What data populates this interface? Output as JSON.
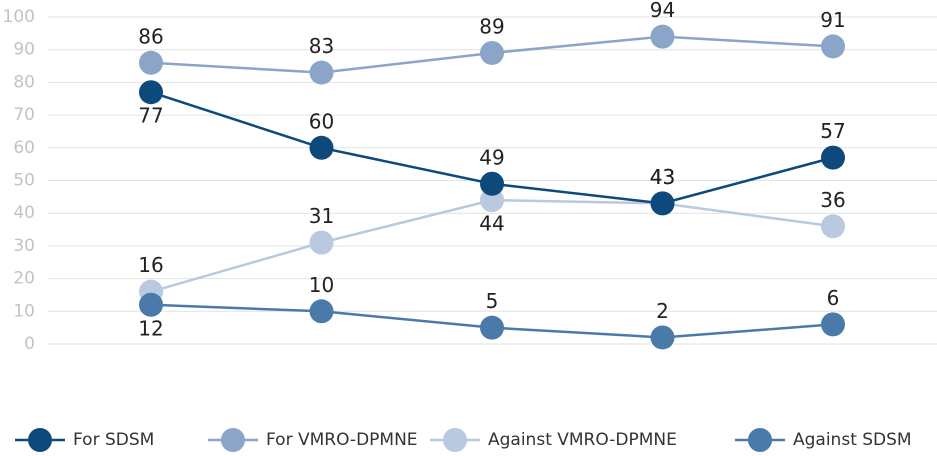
{
  "chart_data": {
    "type": "line",
    "categories": [
      null,
      null,
      null,
      null,
      null
    ],
    "series": [
      {
        "name": "For SDSM",
        "color": "#0d4a7b",
        "values": [
          77,
          60,
          49,
          43,
          57
        ]
      },
      {
        "name": "For VMRO-DPMNE",
        "color": "#8aa5c8",
        "values": [
          86,
          83,
          89,
          94,
          91
        ]
      },
      {
        "name": "Against VMRO-DPMNE",
        "color": "#b9c9df",
        "values": [
          16,
          31,
          44,
          43,
          36
        ]
      },
      {
        "name": "Against SDSM",
        "color": "#4a7aaa",
        "values": [
          12,
          10,
          5,
          2,
          6
        ]
      }
    ],
    "ylim": [
      0,
      100
    ],
    "yticks": [
      0,
      10,
      20,
      30,
      40,
      50,
      60,
      70,
      80,
      90,
      100
    ],
    "grid": true,
    "legend": "bottom"
  }
}
